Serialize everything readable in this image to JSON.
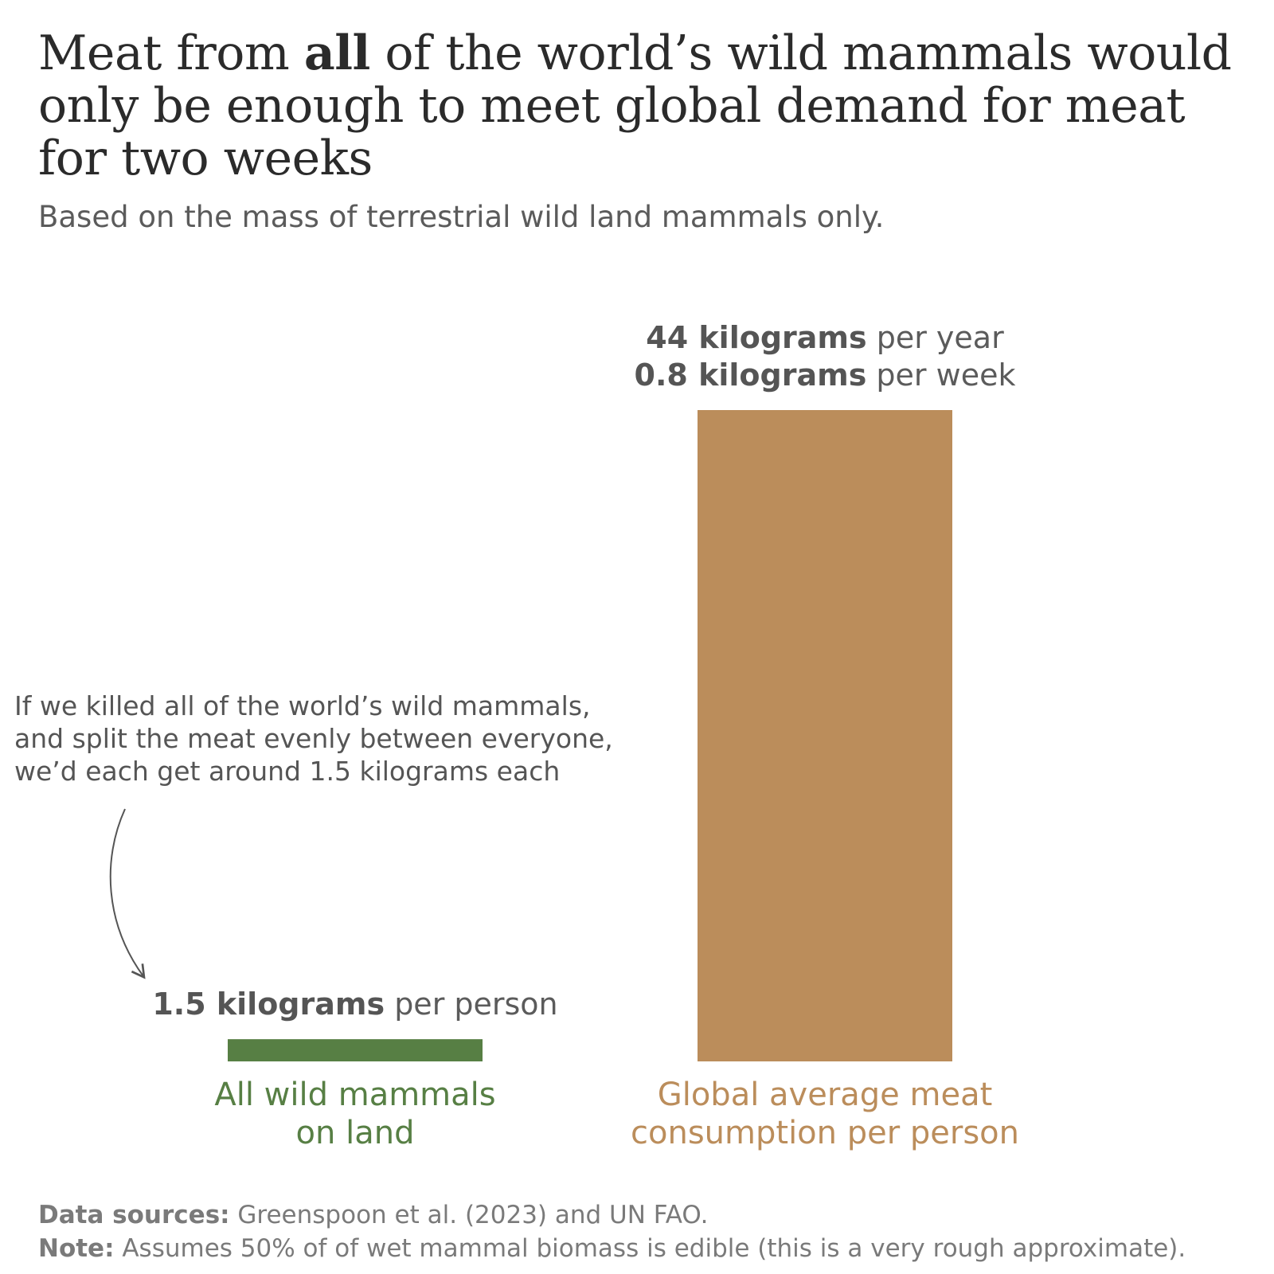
{
  "title": {
    "before": "Meat from ",
    "emphasis": "all",
    "after": " of the world’s wild mammals would only be enough to meet global demand for meat for two weeks"
  },
  "subtitle": "Based on the mass of terrestrial wild land mammals only.",
  "annotation": [
    "If we killed all of the world’s wild mammals,",
    "and split the meat evenly between everyone,",
    "we’d each get around 1.5 kilograms each"
  ],
  "footer": {
    "sources_label": "Data sources:",
    "sources_text": " Greenspoon et al. (2023) and UN FAO.",
    "note_label": "Note:",
    "note_text": " Assumes 50% of of wet mammal biomass is edible (this is a very rough approximate)."
  },
  "colors": {
    "wild": "#577f44",
    "global": "#bb8d5b",
    "arrow": "#555555"
  },
  "chart_data": {
    "type": "bar",
    "unit": "kilograms",
    "categories": [
      "All wild mammals on land",
      "Global average meat consumption per person"
    ],
    "values": [
      1.5,
      44
    ],
    "bars": [
      {
        "category_lines": [
          "All wild mammals",
          "on land"
        ],
        "value": 1.5,
        "color": "#577f44",
        "value_labels": [
          {
            "bold": "1.5 kilograms",
            "rest": " per person"
          }
        ]
      },
      {
        "category_lines": [
          "Global average meat",
          "consumption per person"
        ],
        "value": 44,
        "color": "#bb8d5b",
        "value_labels": [
          {
            "bold": "44 kilograms",
            "rest": " per year"
          },
          {
            "bold": "0.8 kilograms",
            "rest": " per week"
          }
        ]
      }
    ],
    "ylim": [
      0,
      44
    ],
    "grid": false,
    "legend": "none"
  }
}
